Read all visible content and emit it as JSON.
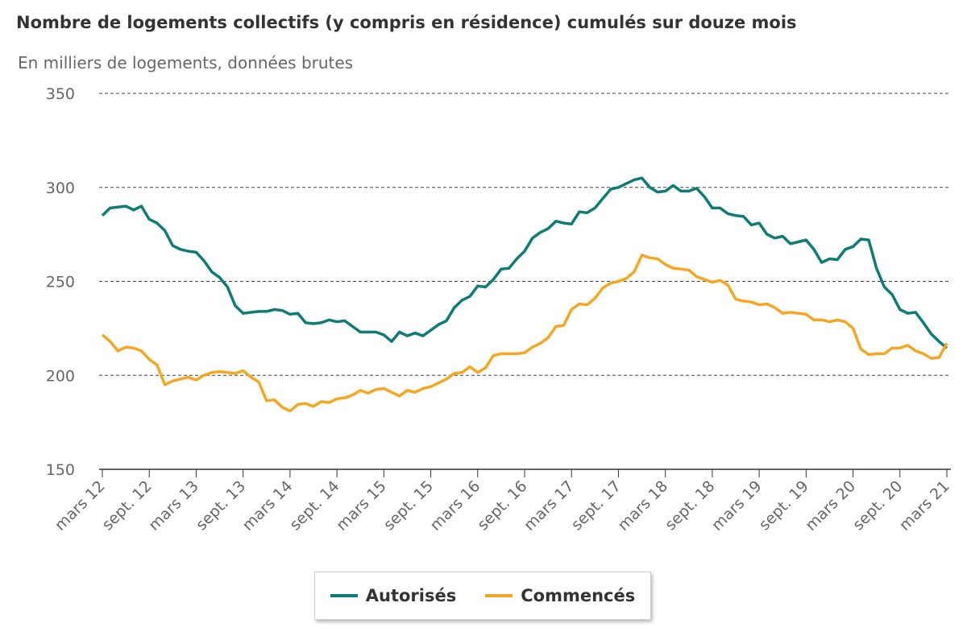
{
  "chart_data": {
    "type": "line",
    "title": "Nombre de logements collectifs (y compris en résidence) cumulés sur douze mois",
    "subtitle": "En milliers de logements, données brutes",
    "xlabel": "",
    "ylabel": "En milliers de logements, données brutes",
    "ylim": [
      150,
      350
    ],
    "yticks": [
      "150",
      "200",
      "250",
      "300",
      "350"
    ],
    "xticks": [
      "mars 12",
      "sept. 12",
      "mars 13",
      "sept. 13",
      "mars 14",
      "sept. 14",
      "mars 15",
      "sept. 15",
      "mars 16",
      "sept. 16",
      "mars 17",
      "sept. 17",
      "mars 18",
      "sept. 18",
      "mars 19",
      "sept. 19",
      "mars 20",
      "sept. 20",
      "mars 21"
    ],
    "x_start": "mars 12",
    "x_end": "mars 21",
    "frequency": "monthly",
    "grid": true,
    "legend_placement": "bottom-center",
    "series": [
      {
        "name": "Autorisés",
        "color": "#0e7c75",
        "values": [
          285,
          289,
          289.5,
          290,
          288,
          290,
          283,
          281,
          277,
          269,
          267,
          266,
          265.5,
          261,
          255,
          252,
          247,
          237,
          233,
          233.5,
          234,
          234,
          235,
          234.5,
          232.5,
          233,
          228,
          227.5,
          228,
          229.5,
          228.5,
          229,
          226,
          223,
          223,
          223,
          221.5,
          218,
          223,
          221,
          222.5,
          221,
          224,
          227,
          229,
          236,
          240,
          242,
          247.5,
          247,
          251,
          256.5,
          257,
          262,
          266,
          273,
          276,
          278,
          282,
          281,
          280.5,
          287,
          286.5,
          289,
          294,
          299,
          300,
          302,
          304,
          305,
          300,
          297.5,
          298,
          301,
          298,
          298,
          299.5,
          295,
          289,
          289,
          286,
          285,
          284.5,
          280,
          281,
          275,
          273,
          274,
          270,
          271,
          272,
          267,
          260,
          262,
          261.5,
          267,
          268.5,
          272.5,
          272,
          257,
          247,
          243,
          235,
          233,
          233.5,
          228,
          222,
          218,
          214.5
        ]
      },
      {
        "name": "Commencés",
        "color": "#f5a623",
        "values": [
          221.5,
          218,
          213,
          215,
          214.5,
          213,
          208.5,
          205.5,
          195,
          197,
          198,
          199,
          197.5,
          200,
          201.5,
          202,
          201.5,
          201,
          202.5,
          199,
          196.5,
          186.5,
          187,
          183,
          181,
          184.5,
          185,
          183.5,
          186,
          185.5,
          187.5,
          188,
          189.5,
          192,
          190.5,
          192.5,
          193,
          191,
          189,
          192,
          191,
          193,
          194,
          196,
          198,
          201,
          201.5,
          204.5,
          201.5,
          204,
          210.5,
          211.5,
          211.5,
          211.5,
          212,
          215,
          217,
          220,
          226,
          226.5,
          235,
          238,
          237.5,
          241,
          246.5,
          249,
          250,
          251.5,
          255,
          264,
          262.5,
          262,
          259,
          257,
          256.5,
          256,
          252.5,
          251,
          249.5,
          250.5,
          248,
          240.5,
          239.5,
          239,
          237.5,
          238,
          236,
          233,
          233.5,
          233,
          232.5,
          229.5,
          229.5,
          228.5,
          229.5,
          228.5,
          225,
          214,
          211,
          211.5,
          211.5,
          214.5,
          214.5,
          216,
          213,
          211.5,
          209,
          209.5,
          217
        ]
      }
    ]
  }
}
